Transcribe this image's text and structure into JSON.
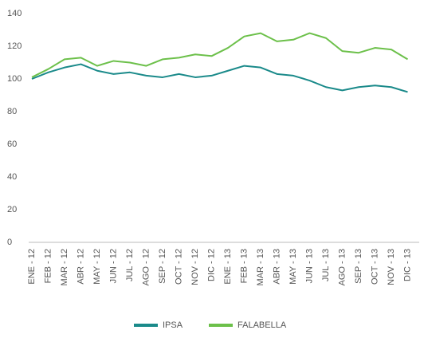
{
  "chart_data": {
    "type": "line",
    "categories": [
      "ENE - 12",
      "FEB - 12",
      "MAR - 12",
      "ABR - 12",
      "MAY - 12",
      "JUN - 12",
      "JUL - 12",
      "AGO - 12",
      "SEP - 12",
      "OCT - 12",
      "NOV - 12",
      "DIC - 12",
      "ENE - 13",
      "FEB - 13",
      "MAR - 13",
      "ABR - 13",
      "MAY - 13",
      "JUN - 13",
      "JUL - 13",
      "AGO - 13",
      "SEP - 13",
      "OCT - 13",
      "NOV - 13",
      "DIC - 13"
    ],
    "series": [
      {
        "name": "IPSA",
        "color": "#1a8a8a",
        "values": [
          100,
          104,
          107,
          109,
          105,
          103,
          104,
          102,
          101,
          103,
          101,
          102,
          105,
          108,
          107,
          103,
          102,
          99,
          95,
          93,
          95,
          96,
          95,
          92
        ]
      },
      {
        "name": "FALABELLA",
        "color": "#6cc04a",
        "values": [
          101,
          106,
          112,
          113,
          108,
          111,
          110,
          108,
          112,
          113,
          115,
          114,
          119,
          126,
          128,
          123,
          124,
          128,
          125,
          117,
          116,
          119,
          118,
          112
        ]
      }
    ],
    "ylim": [
      0,
      140
    ],
    "yticks": [
      0,
      20,
      40,
      60,
      80,
      100,
      120,
      140
    ],
    "grid": false,
    "legend": "bottom"
  }
}
